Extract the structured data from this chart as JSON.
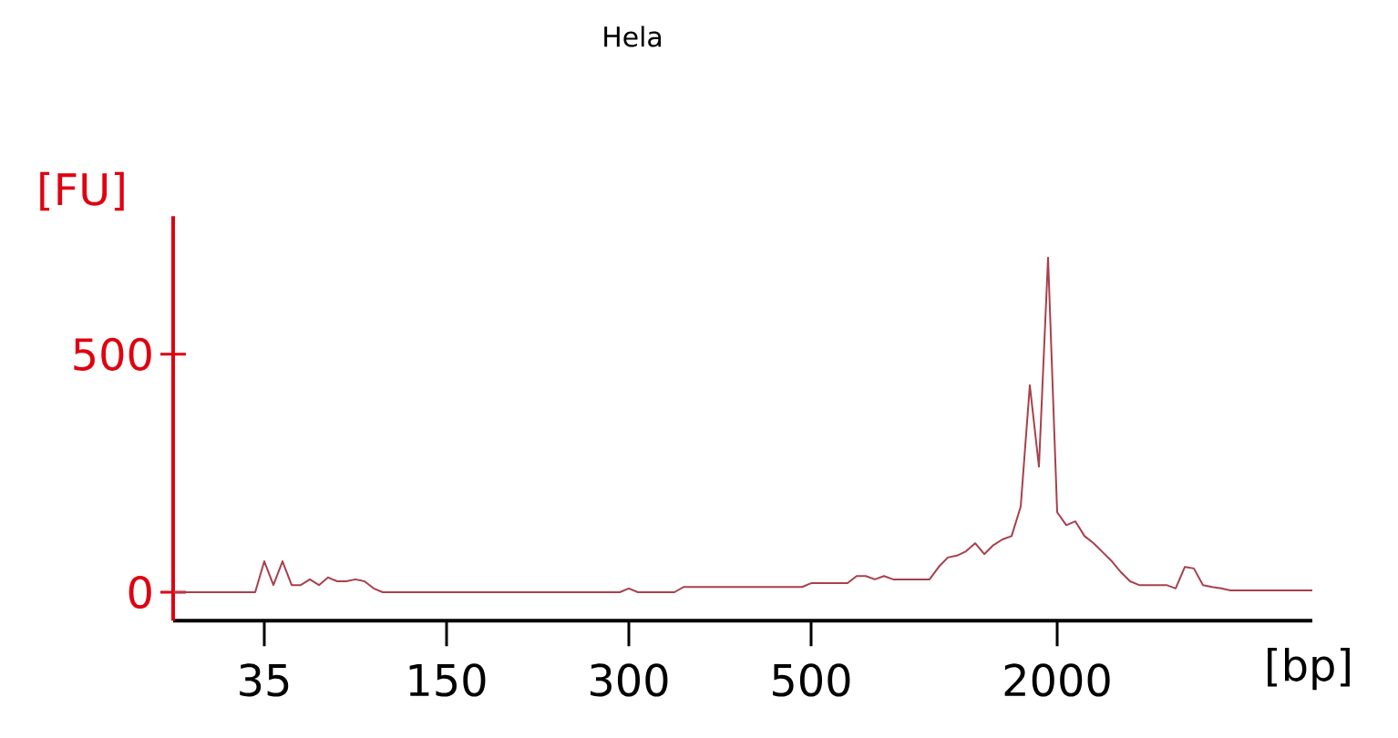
{
  "chart_data": {
    "type": "line",
    "title": "Hela",
    "xlabel": "[bp]",
    "ylabel": "[FU]",
    "color": "#a8404c",
    "ylim": [
      -60,
      790
    ],
    "yticks": [
      0,
      500
    ],
    "categories": [
      null,
      null,
      null,
      null,
      null,
      null,
      null,
      null,
      null,
      null,
      "35",
      null,
      null,
      null,
      null,
      null,
      null,
      null,
      null,
      null,
      null,
      null,
      null,
      null,
      null,
      null,
      null,
      null,
      null,
      null,
      "150",
      null,
      null,
      null,
      null,
      null,
      null,
      null,
      null,
      null,
      null,
      null,
      null,
      null,
      null,
      null,
      null,
      null,
      null,
      null,
      "300",
      null,
      null,
      null,
      null,
      null,
      null,
      null,
      null,
      null,
      null,
      null,
      null,
      null,
      null,
      null,
      null,
      null,
      null,
      null,
      "500",
      null,
      null,
      null,
      null,
      null,
      null,
      null,
      null,
      null,
      null,
      null,
      null,
      null,
      null,
      null,
      null,
      null,
      null,
      null,
      null,
      null,
      null,
      null,
      null,
      null,
      null,
      "2000",
      null,
      null,
      null,
      null,
      null,
      null,
      null,
      null,
      null,
      null,
      null,
      null,
      null,
      null,
      null,
      null,
      null,
      null,
      null,
      null,
      null,
      null,
      null,
      null,
      null,
      null,
      null,
      null
    ],
    "values": [
      0,
      0,
      0,
      0,
      0,
      0,
      0,
      0,
      0,
      0,
      65,
      15,
      65,
      15,
      15,
      27,
      15,
      31,
      23,
      23,
      27,
      23,
      8,
      0,
      0,
      0,
      0,
      0,
      0,
      0,
      0,
      0,
      0,
      0,
      0,
      0,
      0,
      0,
      0,
      0,
      0,
      0,
      0,
      0,
      0,
      0,
      0,
      0,
      0,
      0,
      8,
      0,
      0,
      0,
      0,
      0,
      11,
      11,
      11,
      11,
      11,
      11,
      11,
      11,
      11,
      11,
      11,
      11,
      11,
      11,
      19,
      19,
      19,
      19,
      19,
      34,
      34,
      27,
      34,
      27,
      27,
      27,
      27,
      27,
      53,
      73,
      77,
      86,
      103,
      80,
      99,
      111,
      118,
      180,
      435,
      264,
      703,
      168,
      141,
      149,
      118,
      103,
      84,
      65,
      42,
      23,
      15,
      15,
      15,
      15,
      8,
      53,
      50,
      15,
      11,
      8,
      4,
      4,
      4,
      4,
      4,
      4,
      4,
      4,
      4,
      4
    ]
  }
}
